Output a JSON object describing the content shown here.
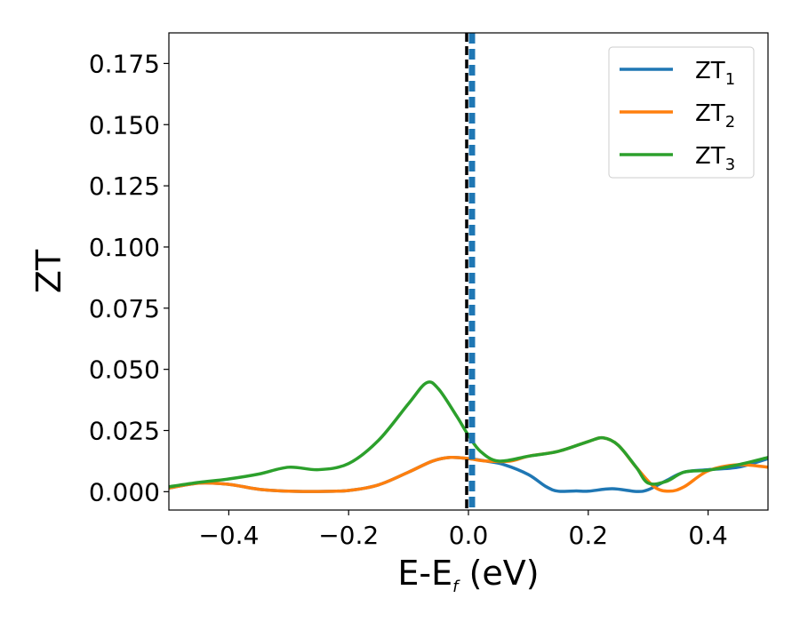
{
  "chart_data": {
    "type": "line",
    "xlabel": "E-E",
    "xlabel_sub": "f",
    "xlabel_unit": " (eV)",
    "ylabel": "ZT",
    "xlim": [
      -0.5,
      0.5
    ],
    "ylim": [
      -0.0075,
      0.1875
    ],
    "xticks": [
      -0.4,
      -0.2,
      0.0,
      0.2,
      0.4
    ],
    "xtick_labels": [
      "−0.4",
      "−0.2",
      "0.0",
      "0.2",
      "0.4"
    ],
    "yticks": [
      0.0,
      0.025,
      0.05,
      0.075,
      0.1,
      0.125,
      0.15,
      0.175
    ],
    "ytick_labels": [
      "0.000",
      "0.025",
      "0.050",
      "0.075",
      "0.100",
      "0.125",
      "0.150",
      "0.175"
    ],
    "grid": false,
    "legend_position": "top-right",
    "vline": {
      "x": 0.0,
      "colors": [
        "#000000",
        "#1f77b4"
      ],
      "style": "dashed"
    },
    "series": [
      {
        "name": "ZT",
        "name_sub": "1",
        "color": "#1f77b4",
        "points": [
          [
            -0.5,
            0.0015
          ],
          [
            -0.45,
            0.0035
          ],
          [
            -0.4,
            0.003
          ],
          [
            -0.35,
            0.001
          ],
          [
            -0.3,
            0.0002
          ],
          [
            -0.25,
            0.0001
          ],
          [
            -0.2,
            0.0005
          ],
          [
            -0.15,
            0.0028
          ],
          [
            -0.1,
            0.008
          ],
          [
            -0.06,
            0.0125
          ],
          [
            -0.03,
            0.014
          ],
          [
            0.0,
            0.0135
          ],
          [
            0.03,
            0.0125
          ],
          [
            0.06,
            0.011
          ],
          [
            0.1,
            0.007
          ],
          [
            0.13,
            0.002
          ],
          [
            0.15,
            0.0002
          ],
          [
            0.18,
            0.0003
          ],
          [
            0.2,
            0.0002
          ],
          [
            0.24,
            0.0012
          ],
          [
            0.28,
            0.0001
          ],
          [
            0.3,
            0.0008
          ],
          [
            0.33,
            0.0045
          ],
          [
            0.36,
            0.008
          ],
          [
            0.4,
            0.009
          ],
          [
            0.45,
            0.01
          ],
          [
            0.5,
            0.0135
          ]
        ]
      },
      {
        "name": "ZT",
        "name_sub": "2",
        "color": "#ff7f0e",
        "points": [
          [
            -0.5,
            0.0015
          ],
          [
            -0.45,
            0.0035
          ],
          [
            -0.4,
            0.003
          ],
          [
            -0.35,
            0.001
          ],
          [
            -0.3,
            0.0002
          ],
          [
            -0.25,
            0.0001
          ],
          [
            -0.2,
            0.0005
          ],
          [
            -0.15,
            0.0028
          ],
          [
            -0.1,
            0.008
          ],
          [
            -0.06,
            0.0125
          ],
          [
            -0.03,
            0.014
          ],
          [
            0.0,
            0.0135
          ],
          [
            0.03,
            0.0125
          ],
          [
            0.07,
            0.0125
          ],
          [
            0.1,
            0.0145
          ],
          [
            0.15,
            0.0165
          ],
          [
            0.2,
            0.0205
          ],
          [
            0.225,
            0.022
          ],
          [
            0.25,
            0.019
          ],
          [
            0.28,
            0.01
          ],
          [
            0.31,
            0.002
          ],
          [
            0.335,
            0.0002
          ],
          [
            0.36,
            0.002
          ],
          [
            0.4,
            0.0085
          ],
          [
            0.45,
            0.011
          ],
          [
            0.5,
            0.01
          ]
        ]
      },
      {
        "name": "ZT",
        "name_sub": "3",
        "color": "#2ca02c",
        "points": [
          [
            -0.5,
            0.002
          ],
          [
            -0.45,
            0.0038
          ],
          [
            -0.4,
            0.0052
          ],
          [
            -0.35,
            0.0072
          ],
          [
            -0.3,
            0.01
          ],
          [
            -0.25,
            0.009
          ],
          [
            -0.2,
            0.0115
          ],
          [
            -0.15,
            0.021
          ],
          [
            -0.1,
            0.036
          ],
          [
            -0.07,
            0.0445
          ],
          [
            -0.05,
            0.042
          ],
          [
            -0.02,
            0.031
          ],
          [
            0.0,
            0.023
          ],
          [
            0.02,
            0.0165
          ],
          [
            0.05,
            0.0125
          ],
          [
            0.1,
            0.0145
          ],
          [
            0.15,
            0.0165
          ],
          [
            0.2,
            0.0205
          ],
          [
            0.225,
            0.022
          ],
          [
            0.25,
            0.019
          ],
          [
            0.28,
            0.01
          ],
          [
            0.3,
            0.0035
          ],
          [
            0.33,
            0.0042
          ],
          [
            0.36,
            0.008
          ],
          [
            0.4,
            0.0088
          ],
          [
            0.45,
            0.011
          ],
          [
            0.5,
            0.014
          ]
        ]
      }
    ]
  }
}
